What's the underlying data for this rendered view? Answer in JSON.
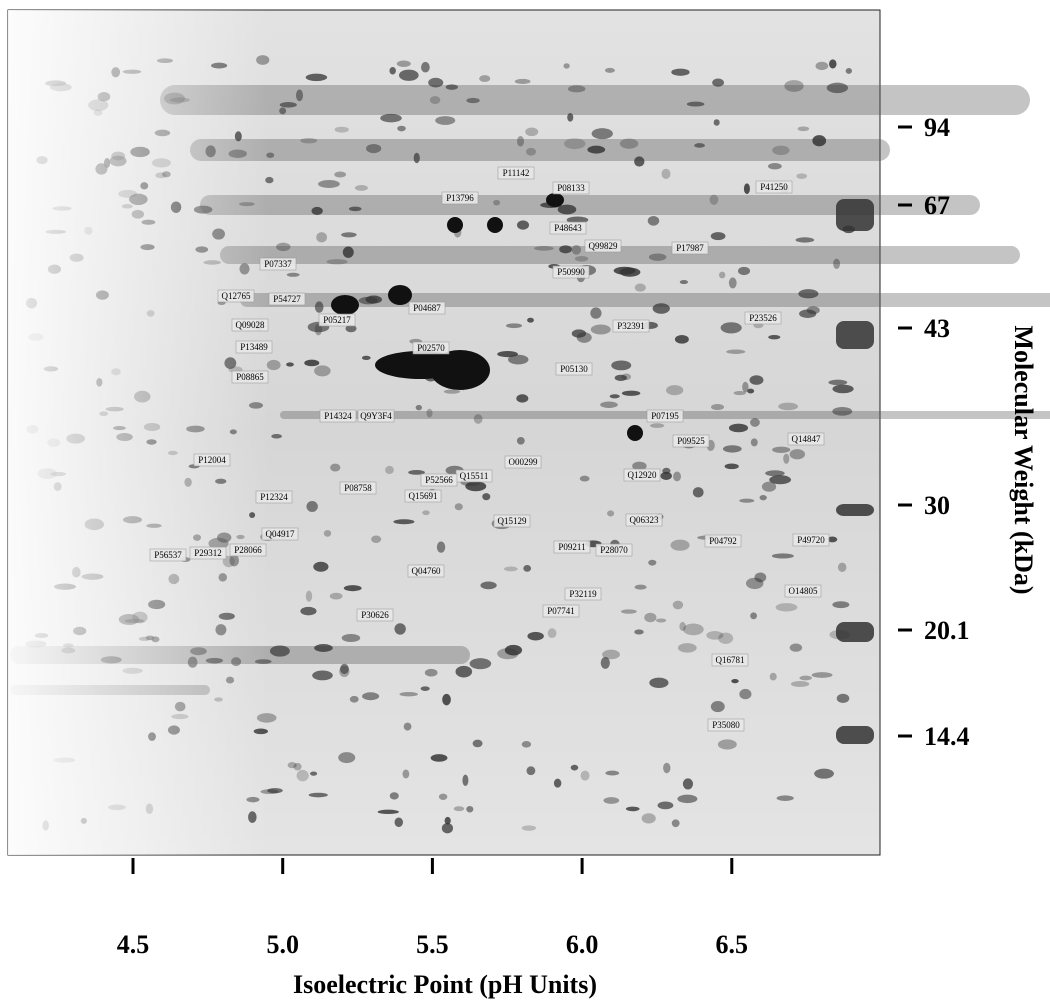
{
  "x_axis": {
    "label": "Isoelectric Point (pH Units)",
    "ticks": [
      4.5,
      5.0,
      5.5,
      6.0,
      6.5
    ]
  },
  "y_axis": {
    "label": "Molecular Weight (kDa)",
    "ticks": [
      94,
      67,
      43,
      30,
      20.1,
      14.4
    ]
  },
  "spot_labels": [
    "P11142",
    "P13796",
    "P08133",
    "P41250",
    "P48643",
    "Q99829",
    "P17987",
    "P07337",
    "P50990",
    "Q12765",
    "P54727",
    "P04687",
    "P05217",
    "Q09028",
    "P23526",
    "P32391",
    "P13489",
    "P02570",
    "P05130",
    "P08865",
    "P14324",
    "Q9Y3F4",
    "P07195",
    "P09525",
    "Q14847",
    "O00299",
    "P12004",
    "Q15511",
    "P52566",
    "Q12920",
    "P08758",
    "Q15691",
    "P12324",
    "Q06323",
    "Q15129",
    "Q04917",
    "P04792",
    "P49720",
    "P56537",
    "P29312",
    "P28066",
    "P09211",
    "P28070",
    "Q04760",
    "O14805",
    "P32119",
    "P07741",
    "P30626",
    "Q16781",
    "P35080"
  ]
}
